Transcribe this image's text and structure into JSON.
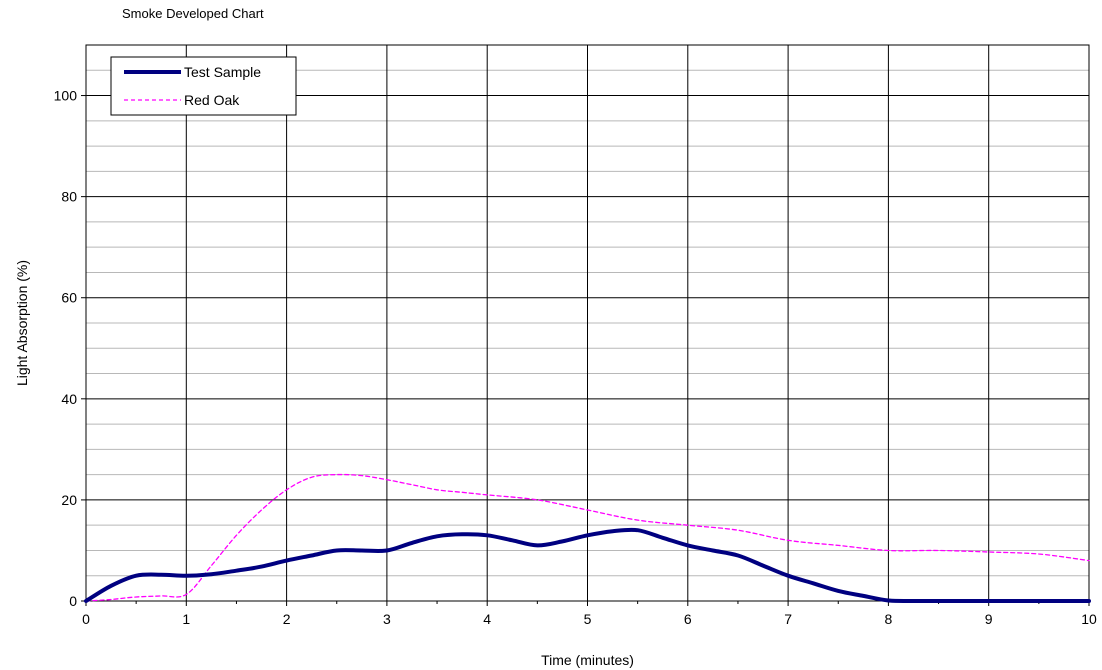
{
  "chart_data": {
    "type": "line",
    "title": "Smoke Developed Chart",
    "xlabel": "Time (minutes)",
    "ylabel": "Light Absorption (%)",
    "xlim": [
      0,
      10
    ],
    "ylim": [
      0,
      110
    ],
    "xticks": [
      0,
      1,
      2,
      3,
      4,
      5,
      6,
      7,
      8,
      9,
      10
    ],
    "yticks": [
      0,
      20,
      40,
      60,
      80,
      100
    ],
    "grid": true,
    "legend": "top-left",
    "series": [
      {
        "name": "Test Sample",
        "color": "#000080",
        "style": "solid",
        "x": [
          0,
          0.25,
          0.5,
          0.75,
          1.0,
          1.25,
          1.5,
          1.75,
          2.0,
          2.25,
          2.5,
          2.75,
          3.0,
          3.25,
          3.5,
          3.75,
          4.0,
          4.25,
          4.5,
          4.75,
          5.0,
          5.25,
          5.5,
          5.75,
          6.0,
          6.25,
          6.5,
          6.75,
          7.0,
          7.25,
          7.5,
          7.75,
          8.0,
          8.25,
          8.5,
          9.0,
          9.5,
          10.0
        ],
        "y": [
          0,
          3,
          5,
          5.2,
          5,
          5.3,
          6,
          6.8,
          8,
          9,
          10,
          10,
          10,
          11.5,
          12.8,
          13.2,
          13,
          12,
          11,
          11.8,
          13,
          13.8,
          14,
          12.5,
          11,
          10,
          9,
          7,
          5,
          3.5,
          2,
          1,
          0.1,
          0,
          0,
          0,
          0,
          0
        ]
      },
      {
        "name": "Red Oak",
        "color": "#ff00ff",
        "style": "dashed",
        "x": [
          0,
          0.25,
          0.5,
          0.75,
          1.0,
          1.25,
          1.5,
          1.75,
          2.0,
          2.25,
          2.5,
          2.75,
          3.0,
          3.25,
          3.5,
          3.75,
          4.0,
          4.5,
          5.0,
          5.5,
          6.0,
          6.5,
          7.0,
          7.5,
          8.0,
          8.5,
          9.0,
          9.5,
          10.0
        ],
        "y": [
          0,
          0.3,
          0.8,
          1,
          1.3,
          7,
          13,
          18,
          22,
          24.5,
          25,
          24.8,
          24,
          23,
          22,
          21.5,
          21,
          20,
          18,
          16,
          15,
          14,
          12,
          11,
          10,
          10,
          9.7,
          9.3,
          8
        ]
      }
    ]
  }
}
